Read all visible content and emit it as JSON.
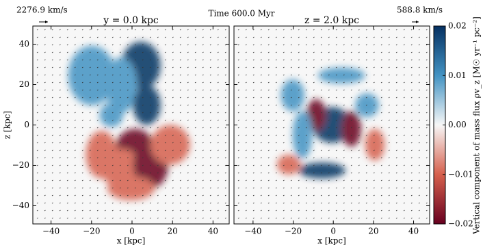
{
  "chart_data": [
    {
      "type": "heatmap",
      "title": "y = 0.0 kpc",
      "xlabel": "x [kpc]",
      "ylabel": "z [kpc]",
      "xlim": [
        -49,
        48
      ],
      "ylim": [
        -49,
        49
      ],
      "xticks": [
        {
          "value": -40,
          "label": "−40"
        },
        {
          "value": -20,
          "label": "−20"
        },
        0,
        20,
        40
      ],
      "yticks": [
        {
          "value": -40,
          "label": "−40"
        },
        {
          "value": -20,
          "label": "−20"
        },
        0,
        20,
        40
      ]
    },
    {
      "type": "heatmap",
      "title": "z = 2.0 kpc",
      "xlabel": "x [kpc]",
      "xlim": [
        -49.5,
        48
      ],
      "ylim": [
        -49,
        49
      ],
      "xticks": [
        {
          "value": -40,
          "label": "−40"
        },
        {
          "value": -20,
          "label": "−20"
        },
        0,
        20,
        40
      ]
    }
  ],
  "colorbar": {
    "label": "Vertical component of mass flux ρv_z [M☉ yr⁻¹ pc⁻²]",
    "clim": [
      -0.02,
      0.02
    ],
    "ticks": [
      {
        "value": -0.02,
        "label": "−0.02"
      },
      {
        "value": -0.01,
        "label": "−0.01"
      },
      {
        "value": 0,
        "label": "0.00"
      },
      {
        "value": 0.01,
        "label": "0.01"
      },
      {
        "value": 0.02,
        "label": "0.02"
      }
    ],
    "colormap": [
      "#67001f",
      "#d6604d",
      "#f7f7f7",
      "#4393c3",
      "#053061"
    ]
  },
  "figure": {
    "time_label": "Time 600.0 Myr",
    "left_arrow_label": "2276.9 km/s",
    "right_arrow_label": "588.8 km/s"
  }
}
